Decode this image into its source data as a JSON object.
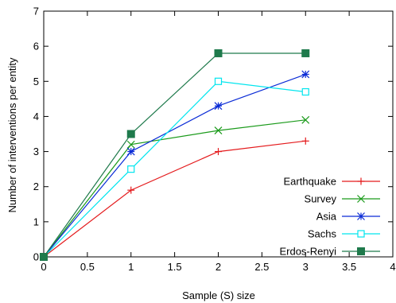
{
  "chart_data": {
    "type": "line",
    "xlabel": "Sample (S) size",
    "ylabel": "Number of interventions per entity",
    "xlim": [
      0,
      4
    ],
    "ylim": [
      0,
      7
    ],
    "xticks": [
      "0",
      "0.5",
      "1",
      "1.5",
      "2",
      "2.5",
      "3",
      "3.5",
      "4"
    ],
    "yticks": [
      "0",
      "1",
      "2",
      "3",
      "4",
      "5",
      "6",
      "7"
    ],
    "grid": false,
    "legend_position": "bottom-right",
    "x": [
      0,
      1,
      2,
      3
    ],
    "series": [
      {
        "name": "Earthquake",
        "values": [
          0,
          1.9,
          3.0,
          3.3
        ],
        "color": "#e41a1c",
        "marker": "plus"
      },
      {
        "name": "Survey",
        "values": [
          0,
          3.2,
          3.6,
          3.9
        ],
        "color": "#1a9a1a",
        "marker": "x"
      },
      {
        "name": "Asia",
        "values": [
          0,
          3.0,
          4.3,
          5.2
        ],
        "color": "#0a2bd6",
        "marker": "star"
      },
      {
        "name": "Sachs",
        "values": [
          0,
          2.5,
          5.0,
          4.7
        ],
        "color": "#00e5ee",
        "marker": "open-square"
      },
      {
        "name": "Erdos-Renyi",
        "values": [
          0,
          3.5,
          5.8,
          5.8
        ],
        "color": "#1f7a4c",
        "marker": "filled-square"
      }
    ]
  }
}
